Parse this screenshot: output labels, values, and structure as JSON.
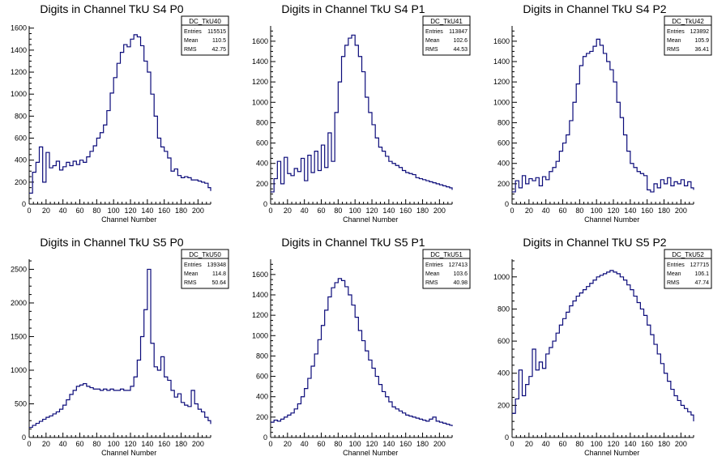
{
  "chart_data": [
    {
      "type": "line",
      "title": "Digits in Channel TkU S4 P0",
      "xlabel": "Channel Number",
      "stats": {
        "name": "DC_TkU40",
        "entries": "115515",
        "mean": "110.5",
        "rms": "42.75"
      },
      "xlim": [
        0,
        215
      ],
      "ylim": [
        0,
        1620
      ],
      "xticks": [
        0,
        20,
        40,
        60,
        80,
        100,
        120,
        140,
        160,
        180,
        200
      ],
      "yticks": [
        200,
        400,
        600,
        800,
        1000,
        1200,
        1400,
        1600
      ],
      "x": [
        0,
        4,
        8,
        12,
        16,
        20,
        24,
        28,
        32,
        36,
        40,
        44,
        48,
        52,
        56,
        60,
        64,
        68,
        72,
        76,
        80,
        84,
        88,
        92,
        96,
        100,
        104,
        108,
        112,
        116,
        120,
        124,
        128,
        132,
        136,
        140,
        144,
        148,
        152,
        156,
        160,
        164,
        168,
        172,
        176,
        180,
        184,
        188,
        192,
        196,
        200,
        204,
        208,
        212,
        215
      ],
      "y": [
        100,
        290,
        380,
        520,
        200,
        470,
        330,
        350,
        390,
        310,
        340,
        380,
        350,
        390,
        360,
        400,
        380,
        430,
        480,
        530,
        600,
        650,
        720,
        850,
        1010,
        1150,
        1280,
        1380,
        1450,
        1430,
        1500,
        1540,
        1520,
        1440,
        1300,
        1200,
        1000,
        800,
        600,
        520,
        480,
        420,
        300,
        320,
        260,
        240,
        250,
        240,
        220,
        220,
        210,
        200,
        190,
        150,
        120
      ]
    },
    {
      "type": "line",
      "title": "Digits in Channel TkU S4 P1",
      "xlabel": "Channel Number",
      "stats": {
        "name": "DC_TkU41",
        "entries": "113847",
        "mean": "102.6",
        "rms": "44.53"
      },
      "xlim": [
        0,
        215
      ],
      "ylim": [
        0,
        1750
      ],
      "xticks": [
        0,
        20,
        40,
        60,
        80,
        100,
        120,
        140,
        160,
        180,
        200
      ],
      "yticks": [
        200,
        400,
        600,
        800,
        1000,
        1200,
        1400,
        1600
      ],
      "x": [
        0,
        4,
        8,
        12,
        16,
        20,
        24,
        28,
        32,
        36,
        40,
        44,
        48,
        52,
        56,
        60,
        64,
        68,
        72,
        76,
        80,
        84,
        88,
        92,
        96,
        100,
        104,
        108,
        112,
        116,
        120,
        124,
        128,
        132,
        136,
        140,
        144,
        148,
        152,
        156,
        160,
        164,
        168,
        172,
        176,
        180,
        184,
        188,
        192,
        196,
        200,
        204,
        208,
        212,
        215
      ],
      "y": [
        120,
        250,
        420,
        200,
        460,
        300,
        280,
        350,
        320,
        450,
        230,
        480,
        310,
        520,
        330,
        580,
        360,
        700,
        420,
        900,
        1200,
        1450,
        1560,
        1630,
        1660,
        1560,
        1450,
        1300,
        1050,
        900,
        780,
        650,
        560,
        520,
        470,
        420,
        400,
        380,
        360,
        330,
        310,
        300,
        290,
        260,
        250,
        240,
        230,
        220,
        210,
        200,
        190,
        180,
        170,
        160,
        140
      ]
    },
    {
      "type": "line",
      "title": "Digits in Channel TkU S4 P2",
      "xlabel": "Channel Number",
      "stats": {
        "name": "DC_TkU42",
        "entries": "123892",
        "mean": "105.9",
        "rms": "36.41"
      },
      "xlim": [
        0,
        215
      ],
      "ylim": [
        0,
        1750
      ],
      "xticks": [
        0,
        20,
        40,
        60,
        80,
        100,
        120,
        140,
        160,
        180,
        200
      ],
      "yticks": [
        200,
        400,
        600,
        800,
        1000,
        1200,
        1400,
        1600
      ],
      "x": [
        0,
        4,
        8,
        12,
        16,
        20,
        24,
        28,
        32,
        36,
        40,
        44,
        48,
        52,
        56,
        60,
        64,
        68,
        72,
        76,
        80,
        84,
        88,
        92,
        96,
        100,
        104,
        108,
        112,
        116,
        120,
        124,
        128,
        132,
        136,
        140,
        144,
        148,
        152,
        156,
        160,
        164,
        168,
        172,
        176,
        180,
        184,
        188,
        192,
        196,
        200,
        204,
        208,
        212,
        215
      ],
      "y": [
        120,
        230,
        160,
        280,
        200,
        250,
        230,
        260,
        180,
        270,
        240,
        320,
        360,
        420,
        520,
        600,
        680,
        820,
        1000,
        1180,
        1360,
        1450,
        1480,
        1500,
        1550,
        1620,
        1560,
        1480,
        1400,
        1320,
        1200,
        1000,
        850,
        680,
        520,
        400,
        360,
        320,
        300,
        280,
        140,
        120,
        200,
        160,
        240,
        200,
        260,
        180,
        220,
        200,
        240,
        180,
        220,
        160,
        140
      ]
    },
    {
      "type": "line",
      "title": "Digits in Channel TkU S5 P0",
      "xlabel": "Channel Number",
      "stats": {
        "name": "DC_TkU50",
        "entries": "139348",
        "mean": "114.8",
        "rms": "50.64"
      },
      "xlim": [
        0,
        215
      ],
      "ylim": [
        0,
        2650
      ],
      "xticks": [
        0,
        20,
        40,
        60,
        80,
        100,
        120,
        140,
        160,
        180,
        200
      ],
      "yticks": [
        500,
        1000,
        1500,
        2000,
        2500
      ],
      "x": [
        0,
        4,
        8,
        12,
        16,
        20,
        24,
        28,
        32,
        36,
        40,
        44,
        48,
        52,
        56,
        60,
        64,
        68,
        72,
        76,
        80,
        84,
        88,
        92,
        96,
        100,
        104,
        108,
        112,
        116,
        120,
        124,
        128,
        132,
        136,
        140,
        144,
        148,
        152,
        156,
        160,
        164,
        168,
        172,
        176,
        180,
        184,
        188,
        192,
        196,
        200,
        204,
        208,
        212,
        215
      ],
      "y": [
        150,
        180,
        210,
        240,
        270,
        300,
        320,
        350,
        380,
        420,
        480,
        560,
        640,
        700,
        760,
        780,
        800,
        760,
        740,
        720,
        720,
        700,
        720,
        700,
        720,
        700,
        700,
        720,
        700,
        700,
        760,
        900,
        1150,
        1500,
        1900,
        2500,
        1400,
        1050,
        1000,
        1200,
        900,
        850,
        700,
        600,
        650,
        520,
        480,
        460,
        700,
        500,
        420,
        380,
        300,
        250,
        200
      ]
    },
    {
      "type": "line",
      "title": "Digits in Channel TkU S5 P1",
      "xlabel": "Channel Number",
      "stats": {
        "name": "DC_TkU51",
        "entries": "127413",
        "mean": "103.6",
        "rms": "40.98"
      },
      "xlim": [
        0,
        215
      ],
      "ylim": [
        0,
        1750
      ],
      "xticks": [
        0,
        20,
        40,
        60,
        80,
        100,
        120,
        140,
        160,
        180,
        200
      ],
      "yticks": [
        200,
        400,
        600,
        800,
        1000,
        1200,
        1400,
        1600
      ],
      "x": [
        0,
        4,
        8,
        12,
        16,
        20,
        24,
        28,
        32,
        36,
        40,
        44,
        48,
        52,
        56,
        60,
        64,
        68,
        72,
        76,
        80,
        84,
        88,
        92,
        96,
        100,
        104,
        108,
        112,
        116,
        120,
        124,
        128,
        132,
        136,
        140,
        144,
        148,
        152,
        156,
        160,
        164,
        168,
        172,
        176,
        180,
        184,
        188,
        192,
        196,
        200,
        204,
        208,
        212,
        215
      ],
      "y": [
        150,
        170,
        160,
        180,
        200,
        220,
        240,
        280,
        330,
        400,
        480,
        580,
        700,
        820,
        960,
        1100,
        1250,
        1380,
        1470,
        1520,
        1560,
        1540,
        1480,
        1400,
        1300,
        1180,
        1050,
        950,
        850,
        760,
        680,
        600,
        520,
        450,
        400,
        350,
        300,
        280,
        260,
        240,
        220,
        210,
        200,
        190,
        180,
        170,
        160,
        180,
        200,
        160,
        150,
        140,
        130,
        120,
        110
      ]
    },
    {
      "type": "line",
      "title": "Digits in Channel TkU S5 P2",
      "xlabel": "Channel Number",
      "stats": {
        "name": "DC_TkU52",
        "entries": "127715",
        "mean": "106.1",
        "rms": "47.74"
      },
      "xlim": [
        0,
        215
      ],
      "ylim": [
        0,
        1110
      ],
      "xticks": [
        0,
        20,
        40,
        60,
        80,
        100,
        120,
        140,
        160,
        180,
        200
      ],
      "yticks": [
        200,
        400,
        600,
        800,
        1000
      ],
      "x": [
        0,
        4,
        8,
        12,
        16,
        20,
        24,
        28,
        32,
        36,
        40,
        44,
        48,
        52,
        56,
        60,
        64,
        68,
        72,
        76,
        80,
        84,
        88,
        92,
        96,
        100,
        104,
        108,
        112,
        116,
        120,
        124,
        128,
        132,
        136,
        140,
        144,
        148,
        152,
        156,
        160,
        164,
        168,
        172,
        176,
        180,
        184,
        188,
        192,
        196,
        200,
        204,
        208,
        212,
        215
      ],
      "y": [
        150,
        240,
        420,
        260,
        330,
        380,
        550,
        420,
        470,
        430,
        520,
        560,
        600,
        650,
        700,
        740,
        780,
        820,
        850,
        880,
        900,
        920,
        940,
        960,
        980,
        1000,
        1010,
        1020,
        1030,
        1040,
        1030,
        1020,
        1000,
        980,
        950,
        920,
        880,
        840,
        800,
        760,
        700,
        640,
        580,
        520,
        460,
        400,
        350,
        300,
        260,
        230,
        200,
        180,
        160,
        140,
        100
      ]
    }
  ]
}
